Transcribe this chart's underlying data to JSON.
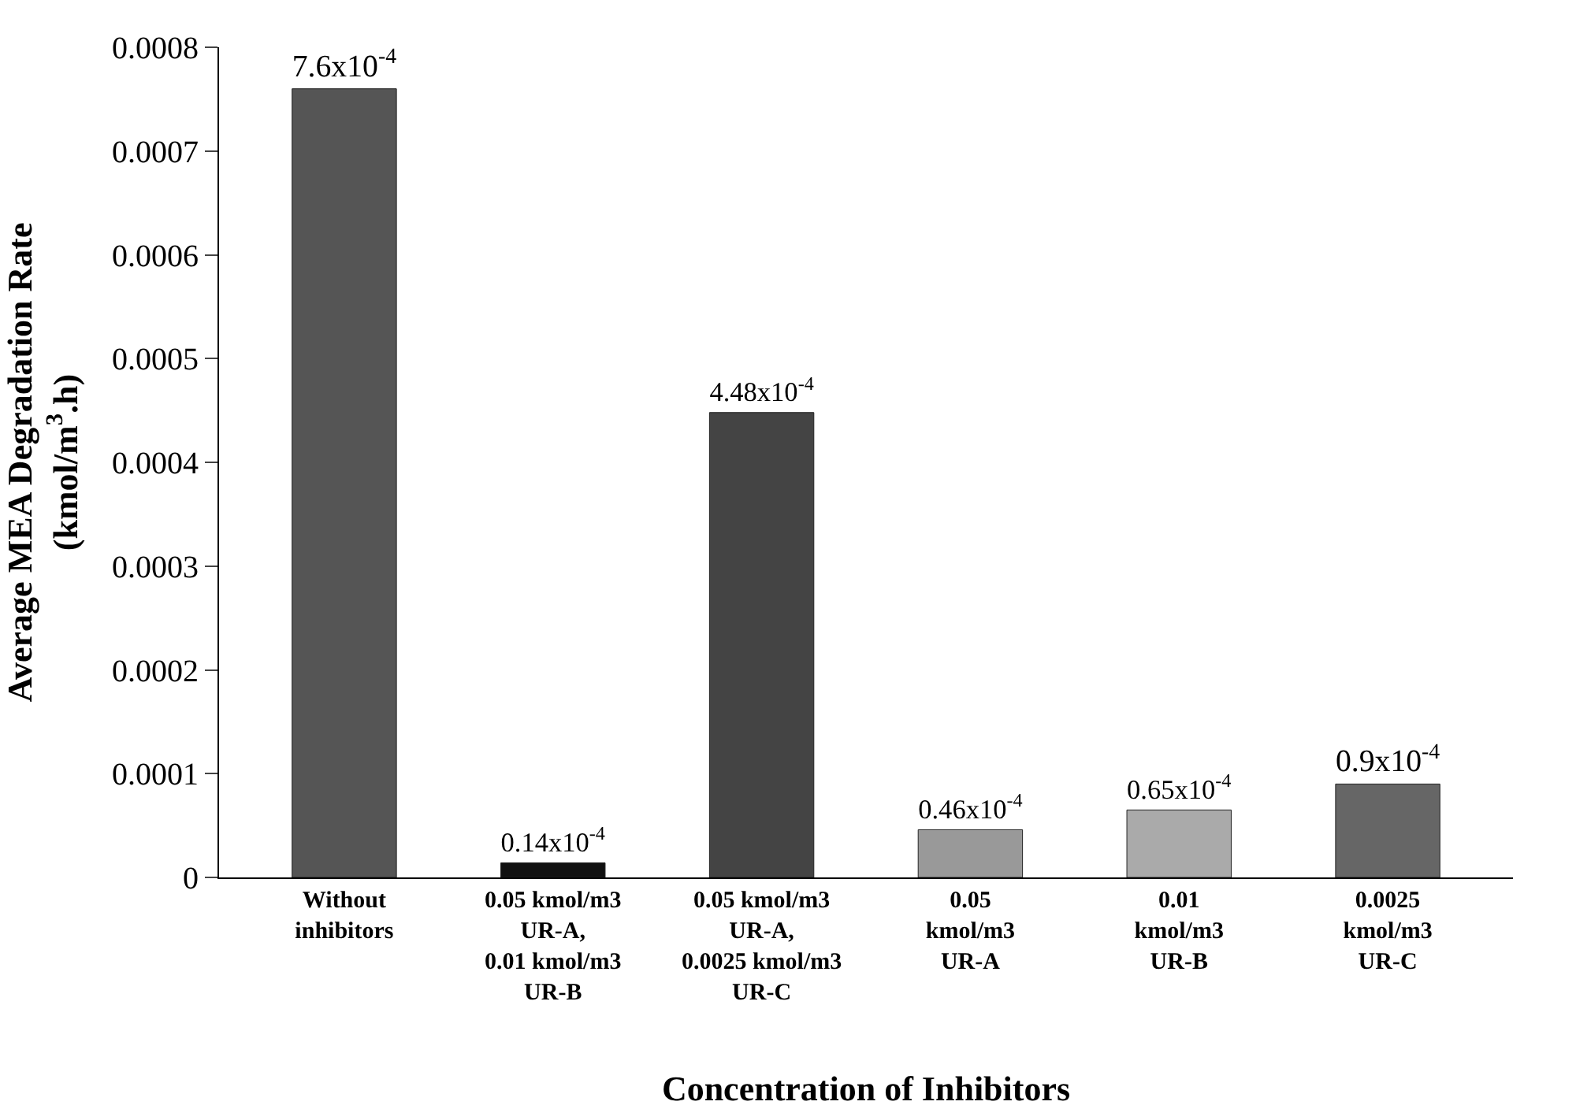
{
  "chart_data": {
    "type": "bar",
    "xlabel": "Concentration of Inhibitors",
    "ylabel": "Average MEA Degradation Rate\n(kmol/m$^{3}$.h)",
    "categories": [
      "Without\ninhibitors",
      "0.05 kmol/m3\nUR-A,\n0.01 kmol/m3\nUR-B",
      "0.05 kmol/m3\nUR-A,\n0.0025 kmol/m3\nUR-C",
      "0.05\nkmol/m3\nUR-A",
      "0.01\nkmol/m3\nUR-B",
      "0.0025\nkmol/m3\nUR-C"
    ],
    "values": [
      0.00076,
      1.4e-05,
      0.000448,
      4.6e-05,
      6.5e-05,
      9e-05
    ],
    "value_labels": [
      "7.6x10$^{-4}$",
      "0.14x10$^{-4}$",
      "4.48x10$^{-4}$",
      "0.46x10$^{-4}$",
      "0.65x10$^{-4}$",
      "0.9x10$^{-4}$"
    ],
    "colors": [
      "#555555",
      "#111111",
      "#444444",
      "#999999",
      "#aaaaaa",
      "#666666"
    ],
    "ylim": [
      0,
      0.0008
    ],
    "yticks": [
      0,
      0.0001,
      0.0002,
      0.0003,
      0.0004,
      0.0005,
      0.0006,
      0.0007,
      0.0008
    ]
  }
}
